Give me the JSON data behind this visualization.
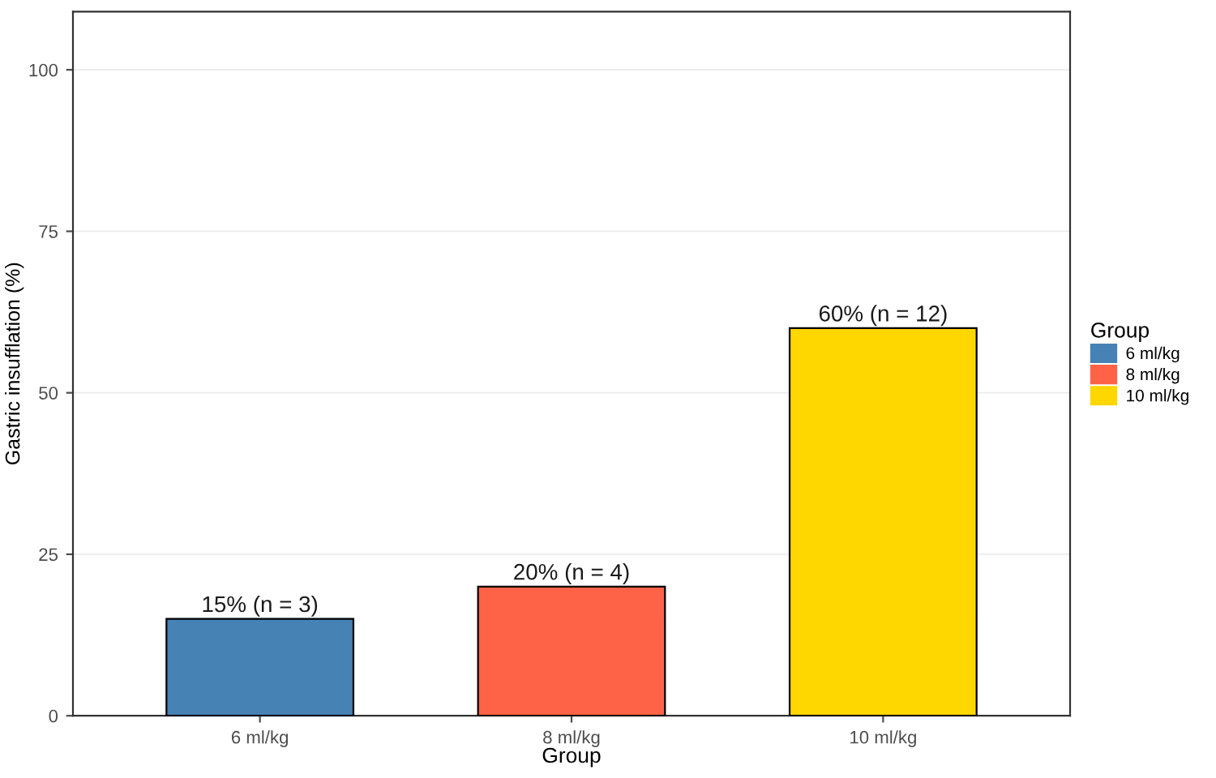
{
  "chart_data": {
    "type": "bar",
    "xlabel": "Group",
    "ylabel": "Gastric insufflation (%)",
    "legend_title": "Group",
    "categories": [
      "6 ml/kg",
      "8 ml/kg",
      "10 ml/kg"
    ],
    "series": [
      {
        "name": "6 ml/kg",
        "color": "#4682b4",
        "values": [
          15,
          null,
          null
        ],
        "value_labels": [
          "15% (n = 3)",
          null,
          null
        ]
      },
      {
        "name": "8 ml/kg",
        "color": "#ff6347",
        "values": [
          null,
          20,
          null
        ],
        "value_labels": [
          null,
          "20% (n = 4)",
          null
        ]
      },
      {
        "name": "10 ml/kg",
        "color": "#ffd700",
        "values": [
          null,
          null,
          60
        ],
        "value_labels": [
          null,
          null,
          "60% (n = 12)"
        ]
      }
    ],
    "ylim": [
      0,
      109
    ],
    "yticks": [
      0,
      25,
      50,
      75,
      100
    ],
    "grid": "y",
    "legend": "right"
  }
}
